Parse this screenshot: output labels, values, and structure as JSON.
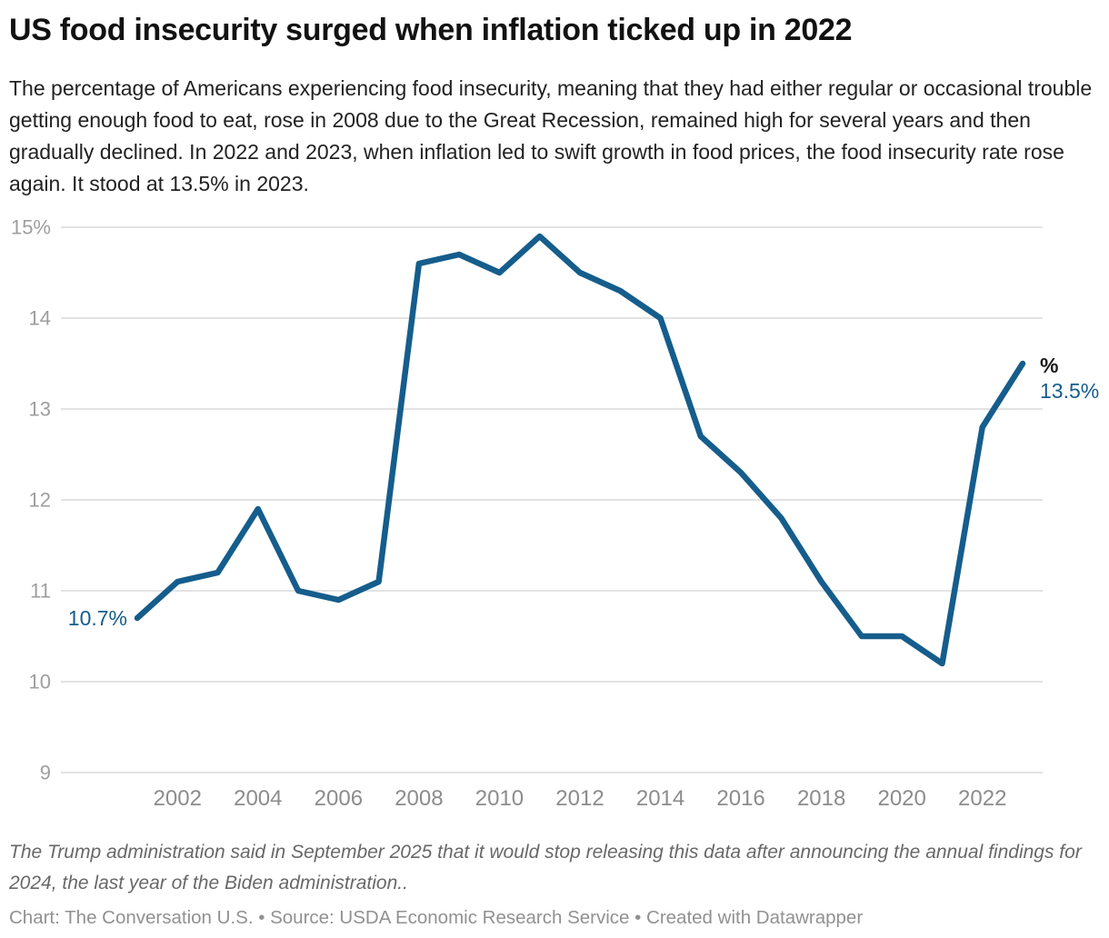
{
  "header": {
    "title": "US food insecurity surged when inflation ticked up in 2022",
    "description": "The percentage of Americans experiencing food insecurity, meaning that they had either regular or occasional trouble getting enough food to eat, rose in 2008 due to the Great Recession, remained high for several years and then gradually declined. In 2022 and 2023, when inflation led to swift growth in food prices, the food insecurity rate rose again. It stood at 13.5% in 2023."
  },
  "chart_data": {
    "type": "line",
    "title": "US food insecurity surged when inflation ticked up in 2022",
    "x": [
      2001,
      2002,
      2003,
      2004,
      2005,
      2006,
      2007,
      2008,
      2009,
      2010,
      2011,
      2012,
      2013,
      2014,
      2015,
      2016,
      2017,
      2018,
      2019,
      2020,
      2021,
      2022,
      2023
    ],
    "series": [
      {
        "name": "Percentage of Americans experiencing food insecurity",
        "values": [
          10.7,
          11.1,
          11.2,
          11.9,
          11.0,
          10.9,
          11.1,
          14.6,
          14.7,
          14.5,
          14.9,
          14.5,
          14.3,
          14.0,
          12.7,
          12.3,
          11.8,
          11.1,
          10.5,
          10.5,
          10.2,
          12.8,
          13.5
        ]
      }
    ],
    "xlabel": "",
    "ylabel": "",
    "ylim": [
      9,
      15
    ],
    "yticks": [
      15,
      14,
      13,
      12,
      11,
      10,
      9
    ],
    "ytick_labels": [
      "15%",
      "14",
      "13",
      "12",
      "11",
      "10",
      "9"
    ],
    "xticks": [
      2002,
      2004,
      2006,
      2008,
      2010,
      2012,
      2014,
      2016,
      2018,
      2020,
      2022
    ],
    "grid": "horizontal",
    "legend_position": "none",
    "annotations": {
      "first_point_label": "10.7%",
      "last_point_unit_label": "%",
      "last_point_label": "13.5%"
    }
  },
  "footer": {
    "note": "The Trump administration said in September 2025 that it would stop releasing this data after announcing the annual findings for 2024, the last year of the Biden administration..",
    "credit": "Chart: The Conversation U.S. • Source: USDA Economic Research Service • Created with Datawrapper"
  },
  "colors": {
    "line": "#155d8c",
    "annotation_value": "#155d8c",
    "annotation_unit": "#1a1a1a",
    "grid_line": "#dadada",
    "y_tick_label": "#9e9e9e",
    "x_tick_label": "#8c8c8c"
  }
}
